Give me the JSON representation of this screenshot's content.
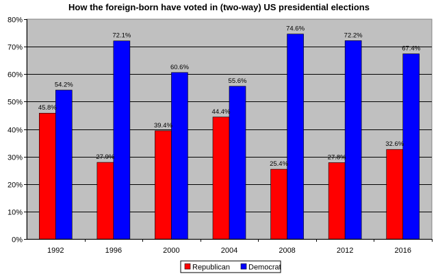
{
  "chart_data": {
    "type": "bar",
    "title": "How the foreign-born have voted in (two-way) US presidential elections",
    "xlabel": "",
    "ylabel": "",
    "categories": [
      "1992",
      "1996",
      "2000",
      "2004",
      "2008",
      "2012",
      "2016"
    ],
    "series": [
      {
        "name": "Republican",
        "color": "#ff0000",
        "values": [
          45.8,
          27.9,
          39.4,
          44.4,
          25.4,
          27.8,
          32.6
        ],
        "labels": [
          "45.8%",
          "27.9%",
          "39.4%",
          "44.4%",
          "25.4%",
          "27.8%",
          "32.6%"
        ]
      },
      {
        "name": "Democrat",
        "color": "#0000ff",
        "values": [
          54.2,
          72.1,
          60.6,
          55.6,
          74.6,
          72.2,
          67.4
        ],
        "labels": [
          "54.2%",
          "72.1%",
          "60.6%",
          "55.6%",
          "74.6%",
          "72.2%",
          "67.4%"
        ]
      }
    ],
    "yticks": [
      "0%",
      "10%",
      "20%",
      "30%",
      "40%",
      "50%",
      "60%",
      "70%",
      "80%"
    ],
    "ylim": [
      0,
      80
    ],
    "grid": true,
    "plot_background": "#c0c0c0",
    "legend_position": "bottom"
  }
}
